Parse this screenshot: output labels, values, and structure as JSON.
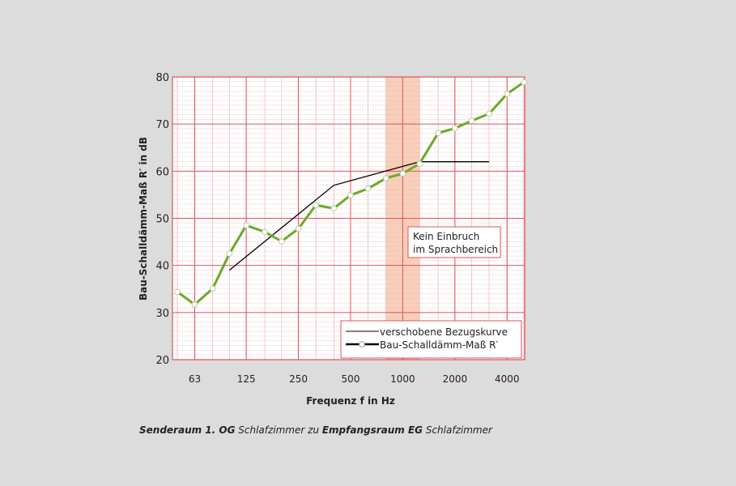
{
  "chart_data": {
    "type": "line",
    "ylabel": "Bau-Schalldämm-Maß R′ in dB",
    "xlabel": "Frequenz f in Hz",
    "ylim": [
      20,
      80
    ],
    "yticks": [
      20,
      30,
      40,
      50,
      60,
      70,
      80
    ],
    "x_scale": "log (third-octave bands)",
    "x": [
      50,
      63,
      80,
      100,
      125,
      160,
      200,
      250,
      315,
      400,
      500,
      630,
      800,
      1000,
      1250,
      1600,
      2000,
      2500,
      3150,
      4000,
      5000
    ],
    "xtick_labels": [
      "63",
      "125",
      "250",
      "500",
      "1000",
      "2000",
      "4000"
    ],
    "grid": true,
    "highlight_band": [
      800,
      1250
    ],
    "series": [
      {
        "name": "verschobene Bezugskurve",
        "color": "#000000",
        "x": [
          100,
          400,
          1250,
          3150
        ],
        "values": [
          39,
          57,
          62,
          62
        ]
      },
      {
        "name": "Bau-Schalldämm-Maß R′",
        "color": "#6aaa2a",
        "x": [
          50,
          63,
          80,
          100,
          125,
          160,
          200,
          250,
          315,
          400,
          500,
          630,
          800,
          1000,
          1250,
          1600,
          2000,
          2500,
          3150,
          4000,
          5000
        ],
        "values": [
          34.4,
          31.7,
          35.1,
          42.5,
          48.5,
          47.1,
          45.1,
          47.8,
          52.8,
          52.1,
          54.9,
          56.3,
          58.5,
          59.5,
          61.6,
          68.1,
          69.1,
          70.7,
          72.2,
          76.4,
          78.9
        ]
      }
    ],
    "annotation": [
      "Kein Einbruch",
      "im Sprachbereich"
    ],
    "legend_position": "bottom-right"
  },
  "caption": {
    "part1": "Senderaum 1. OG",
    "part2": " Schlafzimmer zu ",
    "part3": "Empfangsraum EG",
    "part4": " Schlafzimmer"
  },
  "colors": {
    "grid_major": "#e0505a",
    "grid_minor": "#f0b0b4",
    "band": "#f7c7ad",
    "line": "#6aaa2a"
  }
}
